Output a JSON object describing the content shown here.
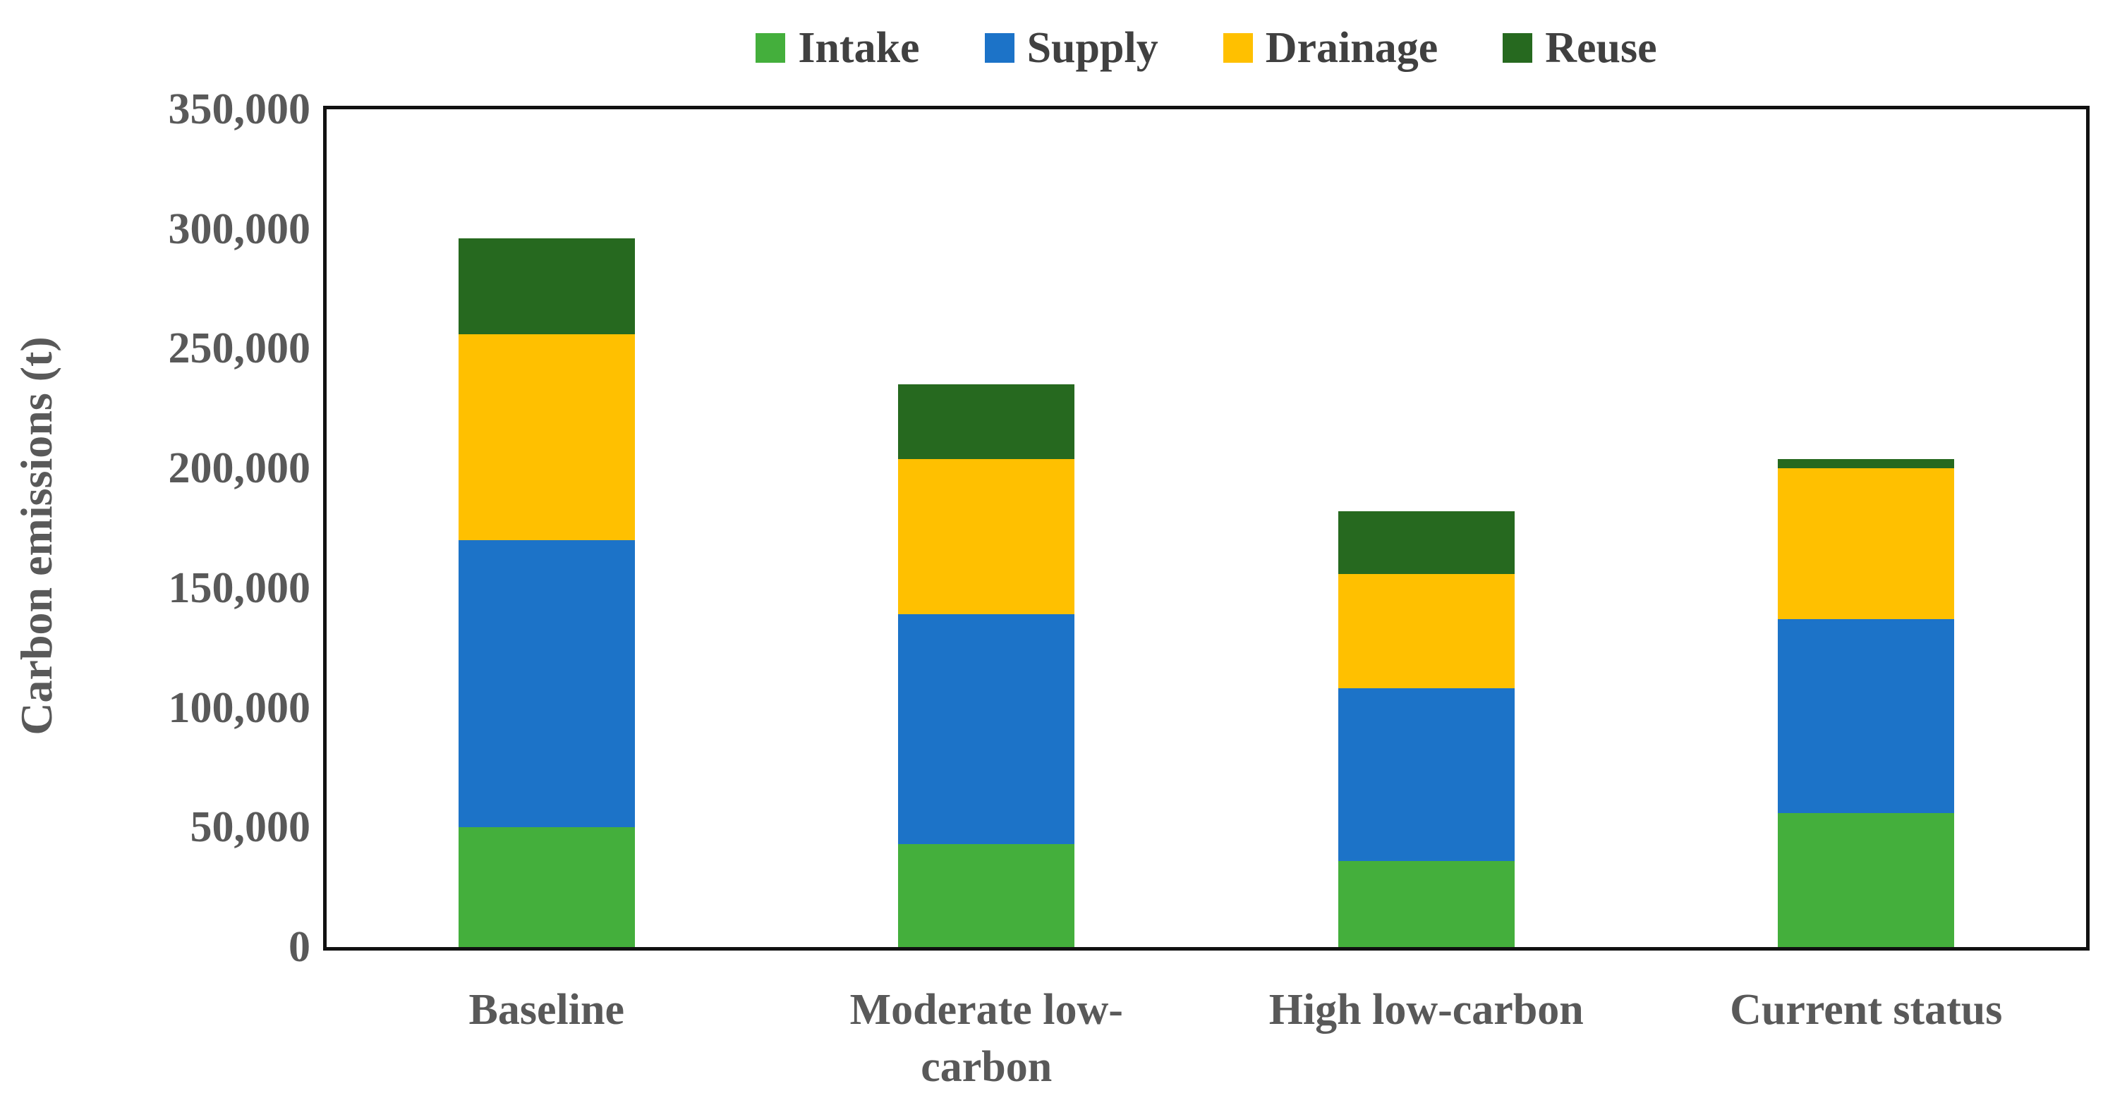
{
  "chart_data": {
    "type": "bar",
    "stacked": true,
    "title": "",
    "categories": [
      "Baseline",
      "Moderate low-carbon",
      "High low-carbon",
      "Current status"
    ],
    "category_labels": [
      "Baseline",
      "Moderate low-\ncarbon",
      "High low-carbon",
      "Current status"
    ],
    "series": [
      {
        "name": "Intake",
        "color": "#44AF3C",
        "values": [
          50000,
          43000,
          36000,
          56000
        ]
      },
      {
        "name": "Supply",
        "color": "#1C73C8",
        "values": [
          120000,
          96000,
          72000,
          81000
        ]
      },
      {
        "name": "Drainage",
        "color": "#FFC000",
        "values": [
          86000,
          65000,
          48000,
          63000
        ]
      },
      {
        "name": "Reuse",
        "color": "#26691F",
        "values": [
          40000,
          31000,
          26000,
          4000
        ]
      }
    ],
    "totals": [
      296000,
      235000,
      182000,
      204000
    ],
    "xlabel": "",
    "ylabel": "Carbon emissions (t)",
    "ylim": [
      0,
      350000
    ],
    "ytick_step": 50000,
    "ytick_labels": [
      "0",
      "50,000",
      "100,000",
      "150,000",
      "200,000",
      "250,000",
      "300,000",
      "350,000"
    ],
    "legend_position": "top",
    "legend_order": [
      "Intake",
      "Supply",
      "Drainage",
      "Reuse"
    ],
    "grid": false,
    "frame_color": "#111111",
    "axis_text_color": "#595959",
    "legend_text_color": "#404040",
    "background_color": "#ffffff"
  }
}
